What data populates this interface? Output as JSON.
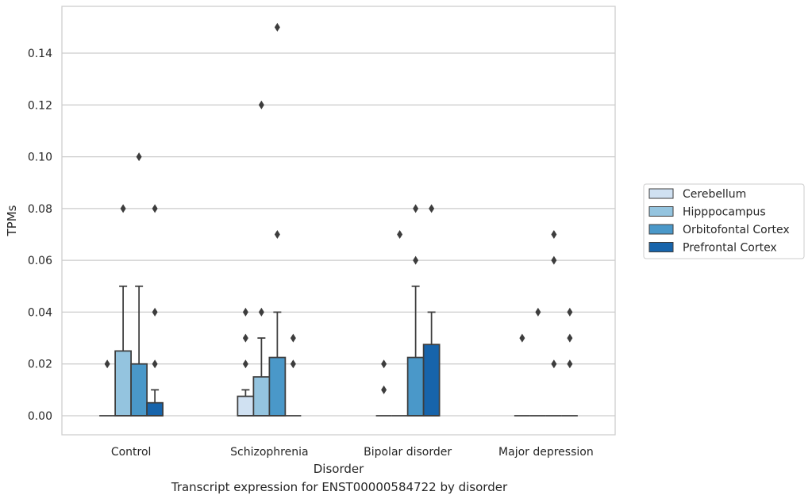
{
  "caption": "Transcript expression for ENST00000584722 by disorder",
  "chart_data": {
    "type": "box",
    "title": "",
    "xlabel": "Disorder",
    "ylabel": "TPMs",
    "ylim": [
      -0.0075,
      0.157
    ],
    "yticks": [
      0.0,
      0.02,
      0.04,
      0.06,
      0.08,
      0.1,
      0.12,
      0.14
    ],
    "ytick_labels": [
      "0.00",
      "0.02",
      "0.04",
      "0.06",
      "0.08",
      "0.10",
      "0.12",
      "0.14"
    ],
    "grid": "horizontal",
    "legend_position": "right",
    "categories": [
      "Control",
      "Schizophrenia",
      "Bipolar disorder",
      "Major depression"
    ],
    "series": [
      {
        "name": "Cerebellum",
        "color": "#d0e1f2",
        "boxes": [
          {
            "q1": 0,
            "median": 0,
            "q3": 0,
            "whisker_low": 0,
            "whisker_high": 0,
            "outliers": [
              0.02
            ]
          },
          {
            "q1": 0,
            "median": 0,
            "q3": 0.0075,
            "whisker_low": 0,
            "whisker_high": 0.01,
            "outliers": [
              0.02,
              0.03,
              0.04
            ]
          },
          {
            "q1": 0,
            "median": 0,
            "q3": 0,
            "whisker_low": 0,
            "whisker_high": 0,
            "outliers": [
              0.01,
              0.02
            ]
          },
          {
            "q1": 0,
            "median": 0,
            "q3": 0,
            "whisker_low": 0,
            "whisker_high": 0,
            "outliers": [
              0.03
            ]
          }
        ]
      },
      {
        "name": "Hipppocampus",
        "color": "#94c4df",
        "boxes": [
          {
            "q1": 0,
            "median": 0,
            "q3": 0.025,
            "whisker_low": 0,
            "whisker_high": 0.05,
            "outliers": [
              0.08
            ]
          },
          {
            "q1": 0,
            "median": 0,
            "q3": 0.015,
            "whisker_low": 0,
            "whisker_high": 0.03,
            "outliers": [
              0.04,
              0.12
            ]
          },
          {
            "q1": 0,
            "median": 0,
            "q3": 0,
            "whisker_low": 0,
            "whisker_high": 0,
            "outliers": [
              0.07
            ]
          },
          {
            "q1": 0,
            "median": 0,
            "q3": 0,
            "whisker_low": 0,
            "whisker_high": 0,
            "outliers": [
              0.04
            ]
          }
        ]
      },
      {
        "name": "Orbitofontal Cortex",
        "color": "#4a98c9",
        "boxes": [
          {
            "q1": 0,
            "median": 0,
            "q3": 0.02,
            "whisker_low": 0,
            "whisker_high": 0.05,
            "outliers": [
              0.1
            ]
          },
          {
            "q1": 0,
            "median": 0,
            "q3": 0.0225,
            "whisker_low": 0,
            "whisker_high": 0.04,
            "outliers": [
              0.07,
              0.15
            ]
          },
          {
            "q1": 0,
            "median": 0,
            "q3": 0.0225,
            "whisker_low": 0,
            "whisker_high": 0.05,
            "outliers": [
              0.06,
              0.08
            ]
          },
          {
            "q1": 0,
            "median": 0,
            "q3": 0,
            "whisker_low": 0,
            "whisker_high": 0,
            "outliers": [
              0.02,
              0.06,
              0.07
            ]
          }
        ]
      },
      {
        "name": "Prefrontal Cortex",
        "color": "#1764ab",
        "boxes": [
          {
            "q1": 0,
            "median": 0,
            "q3": 0.005,
            "whisker_low": 0,
            "whisker_high": 0.01,
            "outliers": [
              0.02,
              0.04,
              0.08
            ]
          },
          {
            "q1": 0,
            "median": 0,
            "q3": 0,
            "whisker_low": 0,
            "whisker_high": 0,
            "outliers": [
              0.02,
              0.03
            ]
          },
          {
            "q1": 0,
            "median": 0,
            "q3": 0.0275,
            "whisker_low": 0,
            "whisker_high": 0.04,
            "outliers": [
              0.08
            ]
          },
          {
            "q1": 0,
            "median": 0,
            "q3": 0,
            "whisker_low": 0,
            "whisker_high": 0,
            "outliers": [
              0.02,
              0.03,
              0.04
            ]
          }
        ]
      }
    ]
  }
}
